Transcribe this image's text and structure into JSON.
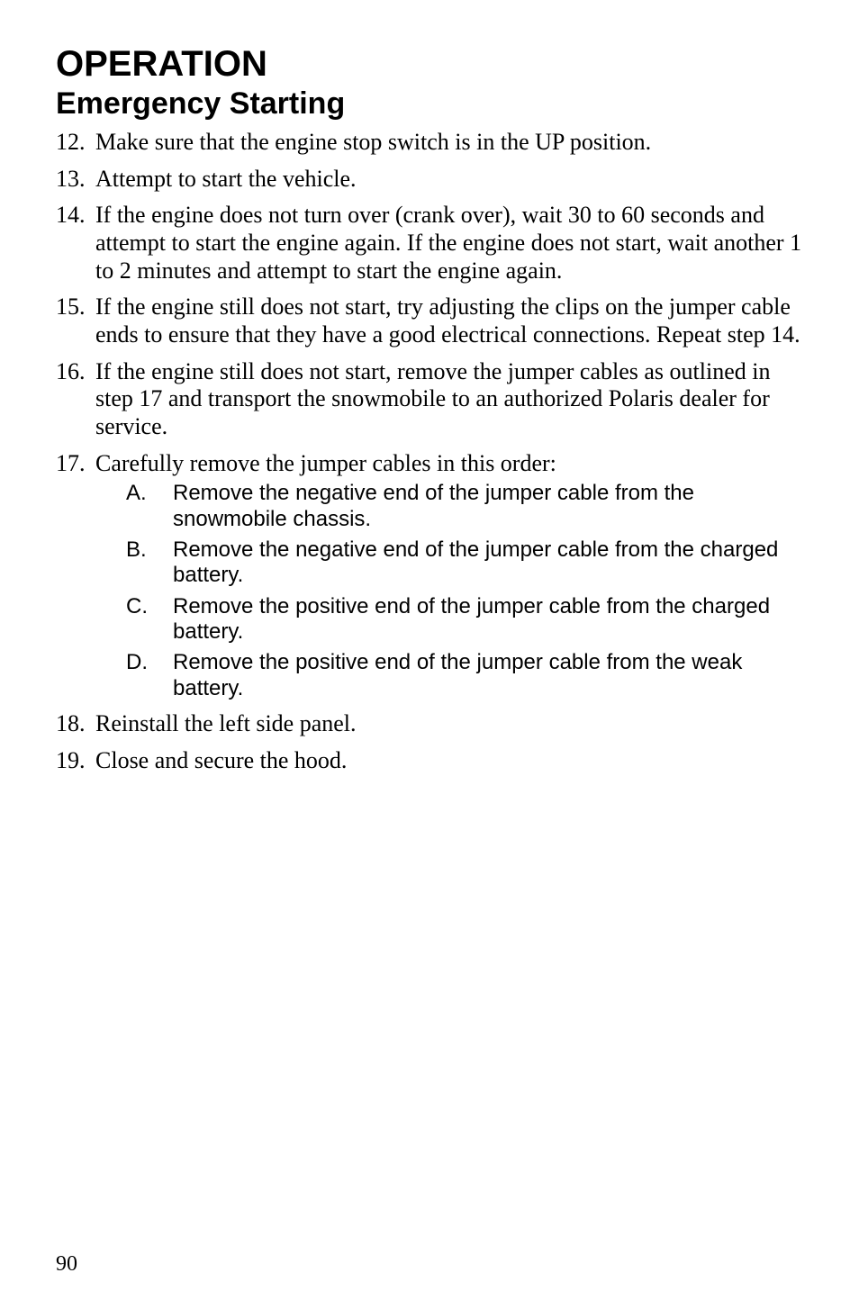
{
  "page": {
    "section_title": "OPERATION",
    "sub_title": "Emergency Starting",
    "page_number": "90"
  },
  "steps": {
    "s12": "Make sure that the engine stop switch is in the UP position.",
    "s13": "Attempt to start the vehicle.",
    "s14": "If the engine does not turn over (crank over), wait 30 to 60 seconds and attempt to start the engine again. If the engine does not start, wait another 1 to 2 minutes and attempt to start the engine again.",
    "s15": "If the engine still does not start, try adjusting the clips on the jumper cable ends to ensure that they have a good electrical connections. Repeat step 14.",
    "s16": "If the engine still does not start, remove the jumper cables as outlined in step 17 and transport the snowmobile to an authorized Polaris dealer for service.",
    "s17": "Carefully remove the jumper cables in this order:",
    "s18": "Reinstall the left side panel.",
    "s19": "Close and secure the hood."
  },
  "substeps17": {
    "a": "Remove the negative end of the jumper cable from the snowmobile chassis.",
    "b": "Remove the negative end of the jumper cable from the charged battery.",
    "c": "Remove the positive end of the jumper cable from the charged battery.",
    "d": "Remove the positive end of the jumper cable from the weak battery."
  }
}
